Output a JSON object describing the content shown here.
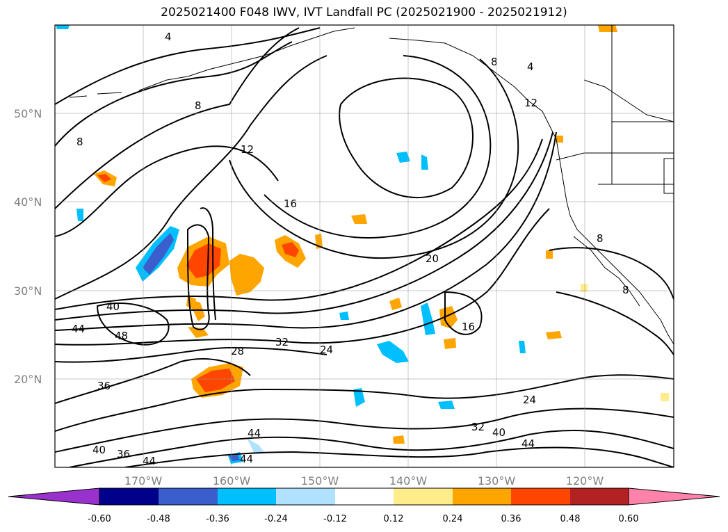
{
  "title": "2025021400 F048 IWV, IVT Landfall PC (2025021900 - 2025021912)",
  "lat_labels": [
    "50°N",
    "40°N",
    "30°N",
    "20°N"
  ],
  "lon_labels": [
    "170°W",
    "160°W",
    "150°W",
    "140°W",
    "130°W",
    "120°W"
  ],
  "contour_labels": [
    "4",
    "4",
    "8",
    "8",
    "8",
    "12",
    "12",
    "16",
    "16",
    "8",
    "8",
    "20",
    "24",
    "24",
    "28",
    "32",
    "32",
    "36",
    "36",
    "40",
    "40",
    "40",
    "44",
    "44",
    "44",
    "44",
    "44",
    "48"
  ],
  "colorbar": {
    "colors": [
      "#9932cc",
      "#00008b",
      "#3a5fcd",
      "#00bfff",
      "#b0e2ff",
      "#ffffff",
      "#ffec8b",
      "#ffa500",
      "#ff4500",
      "#b22222",
      "#ff82ab"
    ],
    "tick_labels": [
      "-0.60",
      "-0.48",
      "-0.36",
      "-0.24",
      "-0.12",
      "0.12",
      "0.24",
      "0.36",
      "0.48",
      "0.60"
    ]
  }
}
